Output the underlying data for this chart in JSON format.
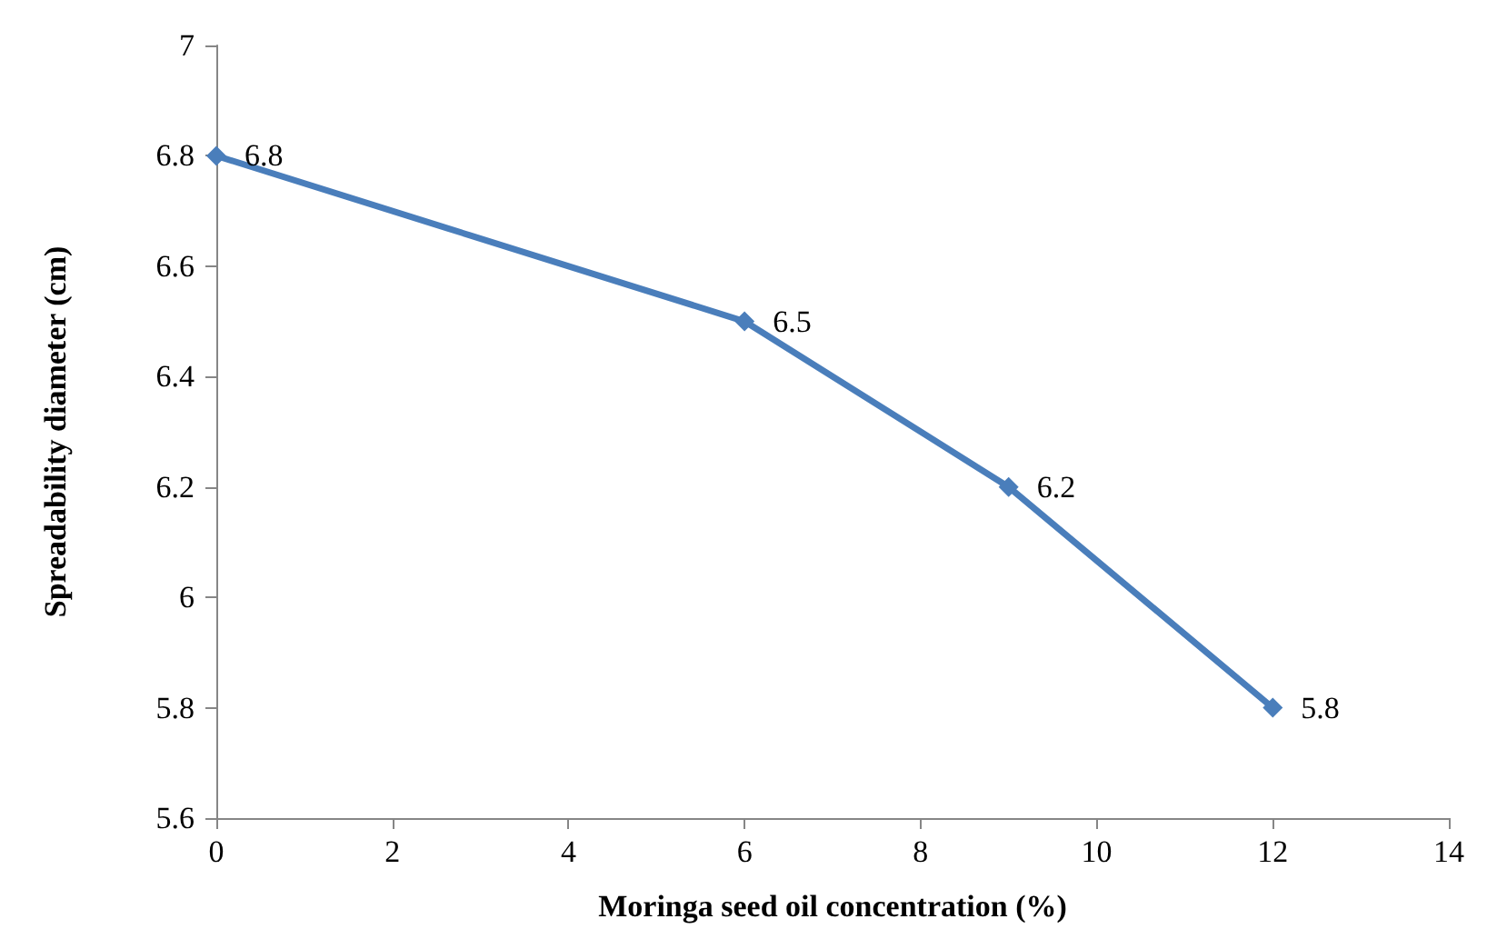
{
  "chart_data": {
    "type": "line",
    "xlabel": "Moringa seed oil concentration (%)",
    "ylabel": "Spreadability diameter (cm)",
    "x": [
      0,
      6,
      9,
      12
    ],
    "series": [
      {
        "color": "#4a7ebb",
        "values": [
          6.8,
          6.5,
          6.2,
          5.8
        ]
      }
    ],
    "xlim": [
      0,
      14
    ],
    "xticks": [
      0,
      2,
      4,
      6,
      8,
      10,
      12,
      14
    ],
    "ylim": [
      5.6,
      7
    ],
    "yticks": [
      5.6,
      5.8,
      6,
      6.2,
      6.4,
      6.6,
      6.8,
      7
    ],
    "marker": "diamond",
    "line_style": "solid",
    "data_labels": true
  }
}
